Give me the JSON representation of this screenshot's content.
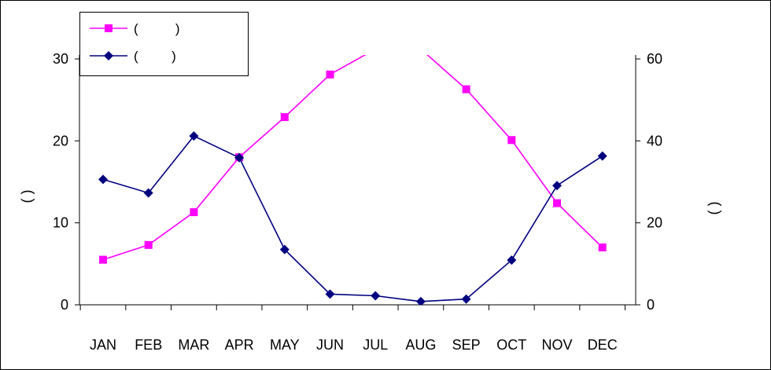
{
  "chart_data": {
    "type": "line",
    "title": "",
    "categories": [
      "JAN",
      "FEB",
      "MAR",
      "APR",
      "MAY",
      "JUN",
      "JUL",
      "AUG",
      "SEP",
      "OCT",
      "NOV",
      "DEC"
    ],
    "y_left": {
      "label": "( )",
      "ylim": [
        0,
        30
      ],
      "ticks": [
        0,
        10,
        20,
        30
      ]
    },
    "y_right": {
      "label": "( )",
      "ylim": [
        0,
        60
      ],
      "ticks": [
        0,
        20,
        40,
        60
      ]
    },
    "grid": false,
    "legend_position": "top-left",
    "series": [
      {
        "name": "(          )",
        "axis": "left",
        "color": "#ff00ff",
        "marker": "square",
        "values": [
          5.5,
          7.3,
          11.3,
          18.0,
          22.9,
          28.1,
          31.2,
          31.2,
          26.3,
          20.1,
          12.4,
          7.0
        ]
      },
      {
        "name": "(         )",
        "axis": "right",
        "color": "#000080",
        "marker": "diamond",
        "values": [
          30.6,
          27.3,
          41.2,
          35.9,
          13.5,
          2.6,
          2.2,
          0.8,
          1.4,
          10.9,
          29.1,
          36.3
        ]
      }
    ]
  }
}
